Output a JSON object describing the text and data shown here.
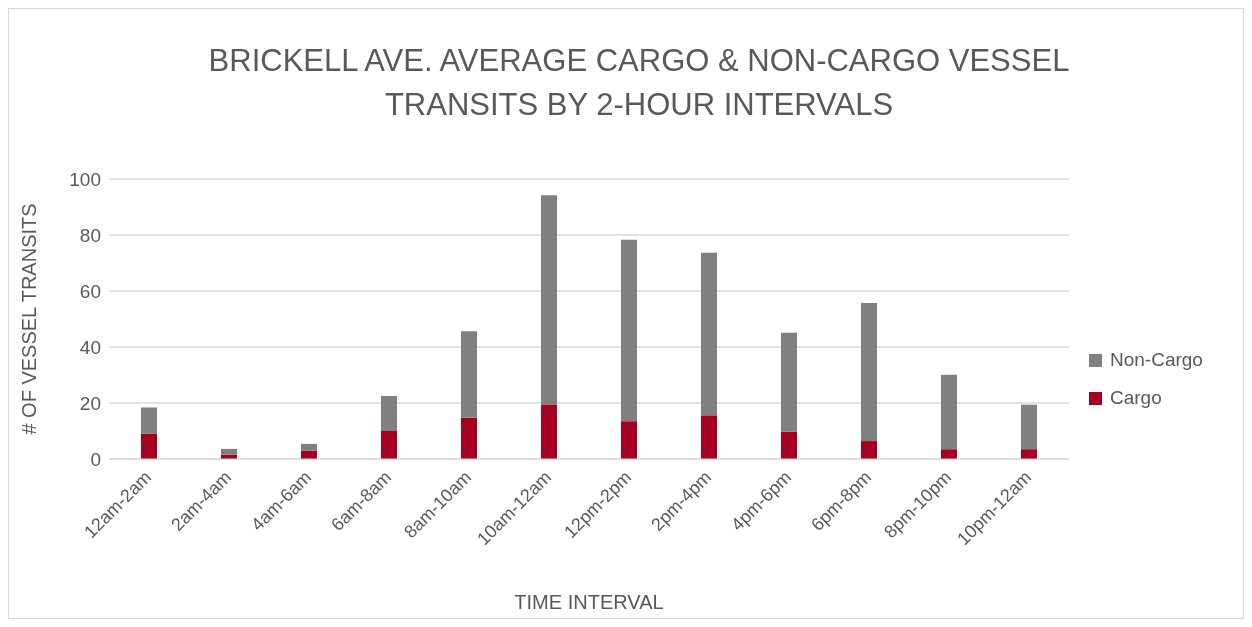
{
  "chart_data": {
    "type": "bar",
    "title": "BRICKELL AVE. AVERAGE CARGO & NON-CARGO VESSEL TRANSITS BY 2-HOUR INTERVALS",
    "xlabel": "TIME INTERVAL",
    "ylabel": "# OF VESSEL TRANSITS",
    "categories": [
      "12am-2am",
      "2am-4am",
      "4am-6am",
      "6am-8am",
      "8am-10am",
      "10am-12am",
      "12pm-2pm",
      "2pm-4pm",
      "4pm-6pm",
      "6pm-8pm",
      "8pm-10pm",
      "10pm-12am"
    ],
    "stacked": true,
    "series": [
      {
        "name": "Cargo",
        "color": "#a50021",
        "values": [
          9.0,
          1.5,
          3.0,
          10.0,
          14.7,
          19.5,
          13.5,
          15.6,
          9.8,
          6.4,
          3.5,
          3.5
        ]
      },
      {
        "name": "Non-Cargo",
        "color": "#808080",
        "values": [
          9.4,
          2.1,
          2.4,
          12.5,
          30.9,
          74.7,
          64.8,
          58.1,
          35.3,
          49.3,
          26.6,
          15.9
        ]
      }
    ],
    "ylim": [
      0,
      100
    ],
    "yticks": [
      0,
      20,
      40,
      60,
      80,
      100
    ],
    "grid": "y",
    "legend": "right"
  }
}
